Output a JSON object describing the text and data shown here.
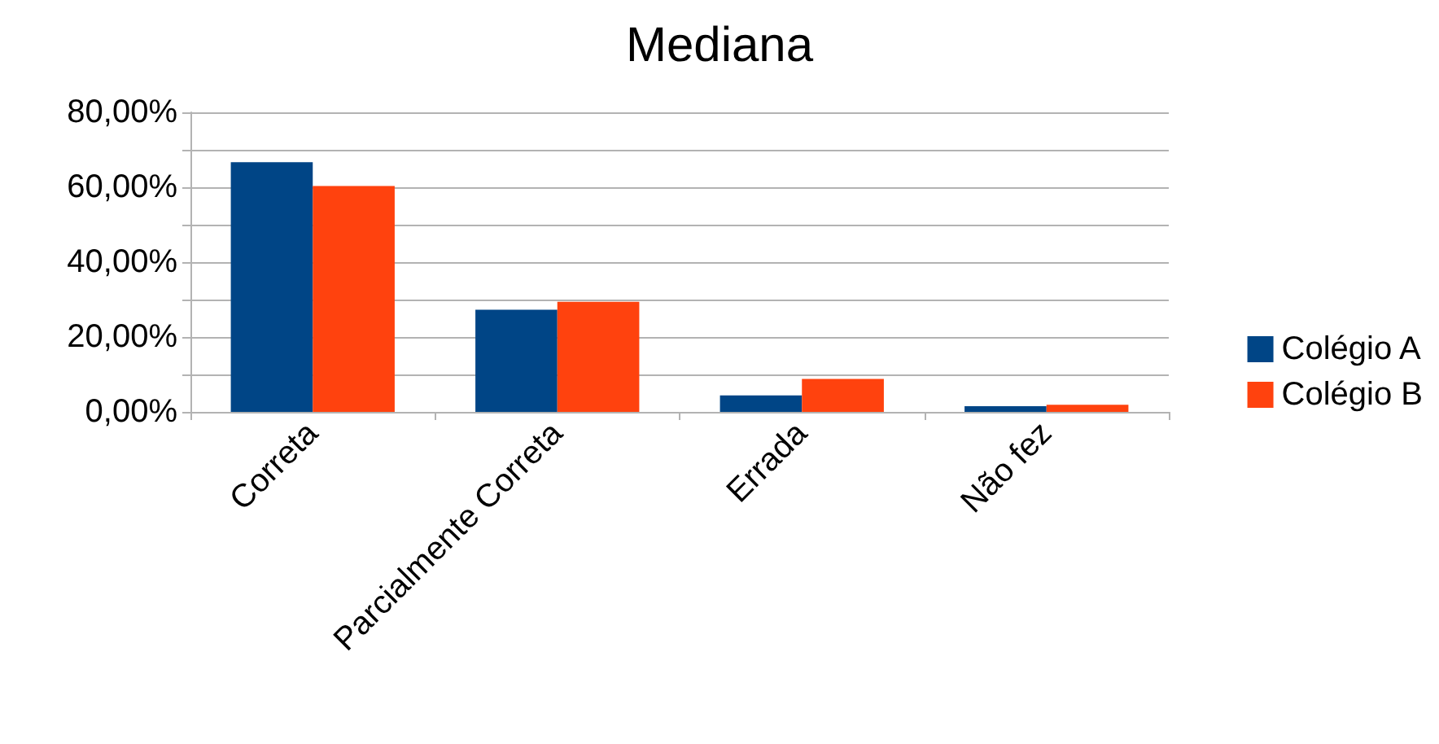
{
  "chart_data": {
    "type": "bar",
    "title": "Mediana",
    "categories": [
      "Correta",
      "Parcialmente Correta",
      "Errada",
      "Não fez"
    ],
    "series": [
      {
        "name": "Colégio A",
        "color": "#004586",
        "values": [
          66.7,
          27.3,
          4.4,
          1.5
        ]
      },
      {
        "name": "Colégio B",
        "color": "#ff420e",
        "values": [
          60.3,
          29.4,
          8.8,
          1.9
        ]
      }
    ],
    "ylim": [
      0,
      80
    ],
    "yticks": [
      {
        "value": 0,
        "label": "0,00%"
      },
      {
        "value": 10,
        "label": null
      },
      {
        "value": 20,
        "label": "20,00%"
      },
      {
        "value": 30,
        "label": null
      },
      {
        "value": 40,
        "label": "40,00%"
      },
      {
        "value": 50,
        "label": null
      },
      {
        "value": 60,
        "label": "60,00%"
      },
      {
        "value": 70,
        "label": null
      },
      {
        "value": 80,
        "label": "80,00%"
      }
    ],
    "grid": true,
    "legend": "right"
  }
}
